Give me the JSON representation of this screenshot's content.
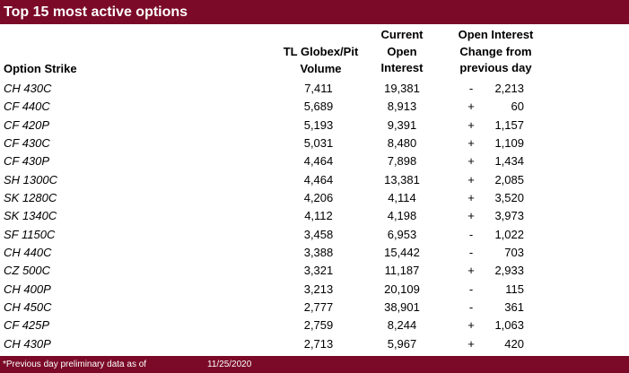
{
  "title": "Top 15 most active options",
  "headers": {
    "strike": "Option Strike",
    "volume": [
      "TL Globex/Pit",
      "Volume"
    ],
    "open_interest": [
      "Current",
      "Open",
      "Interest"
    ],
    "change": [
      "Open Interest",
      "Change from",
      "previous day"
    ]
  },
  "rows": [
    {
      "strike": "CH 430C",
      "volume": "7,411",
      "oi": "19,381",
      "sign": "-",
      "change": "2,213"
    },
    {
      "strike": "CF 440C",
      "volume": "5,689",
      "oi": "8,913",
      "sign": "+",
      "change": "60"
    },
    {
      "strike": "CF 420P",
      "volume": "5,193",
      "oi": "9,391",
      "sign": "+",
      "change": "1,157"
    },
    {
      "strike": "CF 430C",
      "volume": "5,031",
      "oi": "8,480",
      "sign": "+",
      "change": "1,109"
    },
    {
      "strike": "CF 430P",
      "volume": "4,464",
      "oi": "7,898",
      "sign": "+",
      "change": "1,434"
    },
    {
      "strike": "SH 1300C",
      "volume": "4,464",
      "oi": "13,381",
      "sign": "+",
      "change": "2,085"
    },
    {
      "strike": "SK 1280C",
      "volume": "4,206",
      "oi": "4,114",
      "sign": "+",
      "change": "3,520"
    },
    {
      "strike": "SK 1340C",
      "volume": "4,112",
      "oi": "4,198",
      "sign": "+",
      "change": "3,973"
    },
    {
      "strike": "SF 1150C",
      "volume": "3,458",
      "oi": "6,953",
      "sign": "-",
      "change": "1,022"
    },
    {
      "strike": "CH 440C",
      "volume": "3,388",
      "oi": "15,442",
      "sign": "-",
      "change": "703"
    },
    {
      "strike": "CZ 500C",
      "volume": "3,321",
      "oi": "11,187",
      "sign": "+",
      "change": "2,933"
    },
    {
      "strike": "CH 400P",
      "volume": "3,213",
      "oi": "20,109",
      "sign": "-",
      "change": "115"
    },
    {
      "strike": "CH 450C",
      "volume": "2,777",
      "oi": "38,901",
      "sign": "-",
      "change": "361"
    },
    {
      "strike": "CF 425P",
      "volume": "2,759",
      "oi": "8,244",
      "sign": "+",
      "change": "1,063"
    },
    {
      "strike": "CH 430P",
      "volume": "2,713",
      "oi": "5,967",
      "sign": "+",
      "change": "420"
    }
  ],
  "footer": {
    "note": "*Previous day preliminary data as of",
    "date": "11/25/2020"
  },
  "colors": {
    "banner": "#7b0a28",
    "banner_text": "#ffffff"
  }
}
